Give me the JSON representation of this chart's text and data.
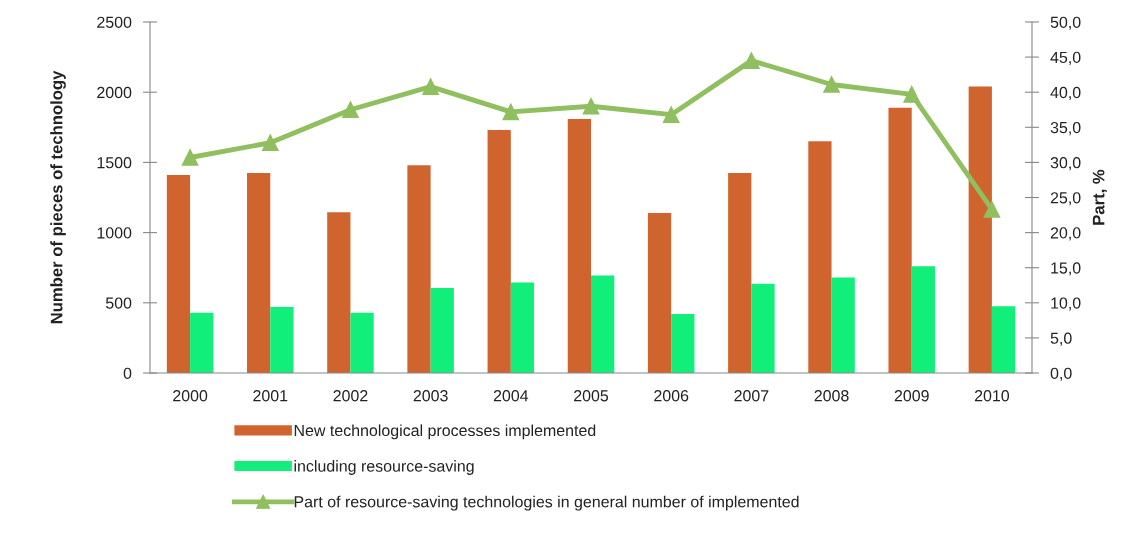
{
  "chart_data": {
    "type": "bar",
    "categories": [
      "2000",
      "2001",
      "2002",
      "2003",
      "2004",
      "2005",
      "2006",
      "2007",
      "2008",
      "2009",
      "2010"
    ],
    "series": [
      {
        "name": "New technological processes implemented",
        "color": "#d0642f",
        "values": [
          1410,
          1425,
          1145,
          1480,
          1730,
          1810,
          1140,
          1425,
          1650,
          1890,
          2040
        ]
      },
      {
        "name": "including resource-saving",
        "color": "#12ee7a",
        "values": [
          430,
          470,
          430,
          605,
          645,
          695,
          420,
          635,
          680,
          760,
          475
        ]
      },
      {
        "name": "Part of resource-saving technologies in general number of implemented",
        "type": "line",
        "axis": "y2",
        "color": "#8fbf5f",
        "values": [
          30.7,
          32.8,
          37.5,
          40.8,
          37.2,
          38.0,
          36.8,
          44.5,
          41.1,
          39.7,
          23.3
        ]
      }
    ],
    "ylabel": "Number of pieces of technology",
    "y2label": "Part, %",
    "ylim": [
      0,
      2500
    ],
    "yticks": [
      0,
      500,
      1000,
      1500,
      2000,
      2500
    ],
    "y2lim": [
      0,
      50
    ],
    "y2ticks": [
      {
        "value": 0,
        "label": "0,0"
      },
      {
        "value": 5,
        "label": "5,0"
      },
      {
        "value": 10,
        "label": "10,0"
      },
      {
        "value": 15,
        "label": "15,0"
      },
      {
        "value": 20,
        "label": "20,0"
      },
      {
        "value": 25,
        "label": "25,0"
      },
      {
        "value": 30,
        "label": "30,0"
      },
      {
        "value": 35,
        "label": "35,0"
      },
      {
        "value": 40,
        "label": "40,0"
      },
      {
        "value": 45,
        "label": "45,0"
      },
      {
        "value": 50,
        "label": "50,0"
      }
    ],
    "marker": "triangle",
    "legend": "bottom",
    "grid": false
  }
}
